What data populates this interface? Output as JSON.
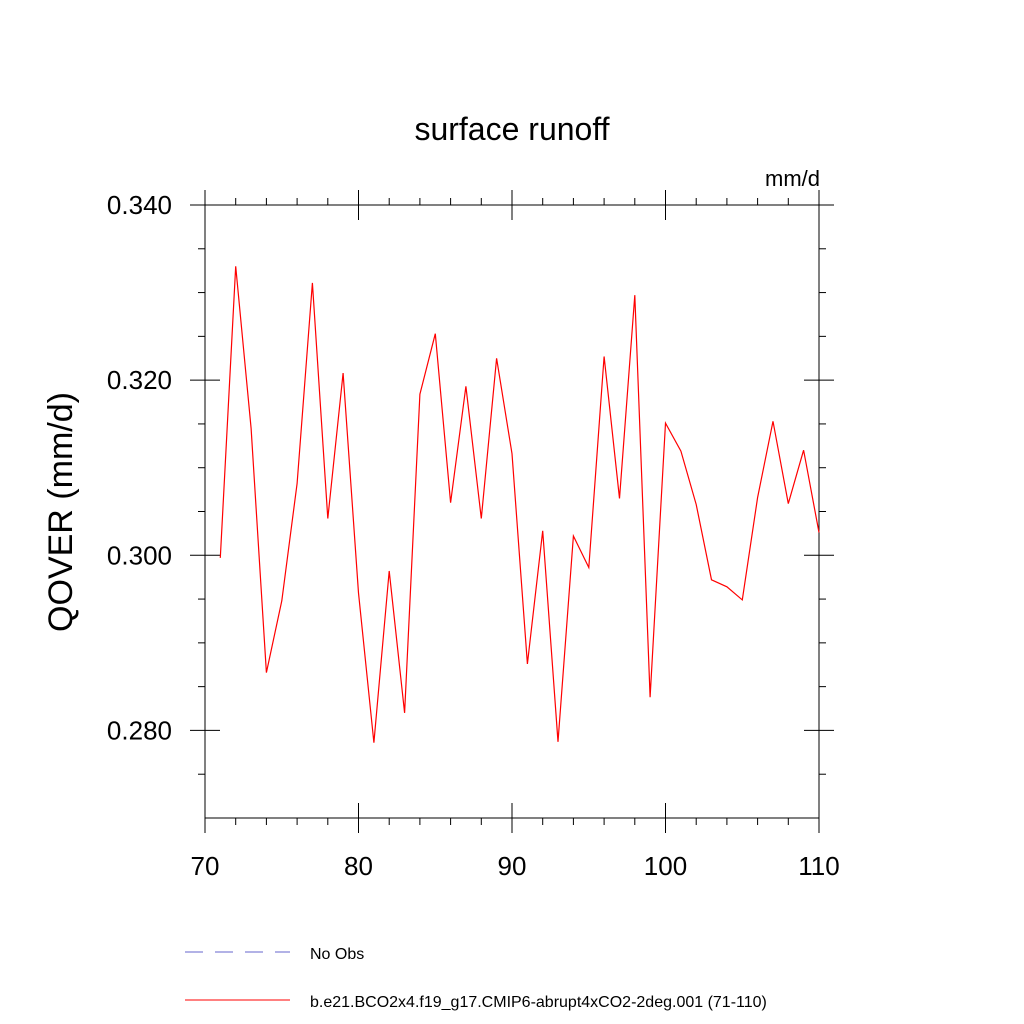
{
  "chart_data": {
    "type": "line",
    "title": "surface runoff",
    "units_label": "mm/d",
    "ylabel": "QOVER  (mm/d)",
    "xlabel": "",
    "xlim": [
      70,
      110
    ],
    "ylim": [
      0.27,
      0.34
    ],
    "x_ticks": [
      70,
      80,
      90,
      100,
      110
    ],
    "y_ticks": [
      0.28,
      0.3,
      0.32,
      0.34
    ],
    "x_tick_labels": [
      "70",
      "80",
      "90",
      "100",
      "110"
    ],
    "y_tick_labels": [
      "0.280",
      "0.300",
      "0.320",
      "0.340"
    ],
    "grid": false,
    "legend_position": "bottom-left",
    "series": [
      {
        "name": "No Obs",
        "style": "dashed",
        "color": "#6666cc",
        "x": [],
        "values": []
      },
      {
        "name": "b.e21.BCO2x4.f19_g17.CMIP6-abrupt4xCO2-2deg.001 (71-110)",
        "style": "solid",
        "color": "#ff0000",
        "x": [
          71,
          72,
          73,
          74,
          75,
          76,
          77,
          78,
          79,
          80,
          81,
          82,
          83,
          84,
          85,
          86,
          87,
          88,
          89,
          90,
          91,
          92,
          93,
          94,
          95,
          96,
          97,
          98,
          99,
          100,
          101,
          102,
          103,
          104,
          105,
          106,
          107,
          108,
          109,
          110
        ],
        "values": [
          0.2997,
          0.333,
          0.3145,
          0.2866,
          0.2948,
          0.3082,
          0.3311,
          0.3042,
          0.3208,
          0.2957,
          0.2786,
          0.2982,
          0.282,
          0.3184,
          0.3253,
          0.306,
          0.3193,
          0.3042,
          0.3225,
          0.3116,
          0.2876,
          0.3028,
          0.2787,
          0.3022,
          0.2986,
          0.3227,
          0.3065,
          0.3297,
          0.2838,
          0.3151,
          0.3119,
          0.3058,
          0.2972,
          0.2964,
          0.2949,
          0.3066,
          0.3153,
          0.3059,
          0.312,
          0.3026
        ]
      }
    ]
  }
}
